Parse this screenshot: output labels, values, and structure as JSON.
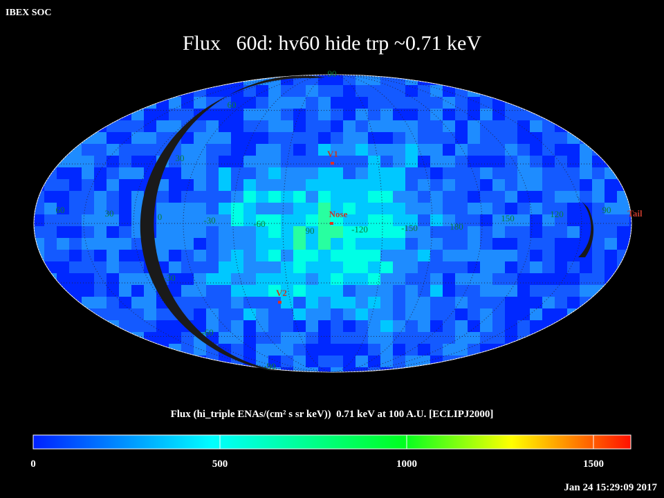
{
  "header": {
    "label": "IBEX SOC",
    "title": "Flux   60d: hv60 hide trp ~0.71 keV",
    "timestamp": "Jan 24 15:29:09 2017"
  },
  "map": {
    "latitude_labels": [
      "90",
      "60",
      "30",
      "-30",
      "-60",
      "-90"
    ],
    "longitude_labels": [
      "60",
      "30",
      "0",
      "-30",
      "-60",
      "90",
      "-120",
      "-150",
      "180",
      "150",
      "120",
      "90"
    ],
    "markers": [
      "V1",
      "Nose",
      "V2",
      "Tail"
    ]
  },
  "chart_data": {
    "type": "colorbar",
    "title": "Flux (hi_triple ENAs/(cm² s sr keV))  0.71 keV at 100 A.U. [ECLIPJ2000]",
    "xlim": [
      0,
      1600
    ],
    "xticks": [
      0,
      500,
      1000,
      1500
    ]
  }
}
